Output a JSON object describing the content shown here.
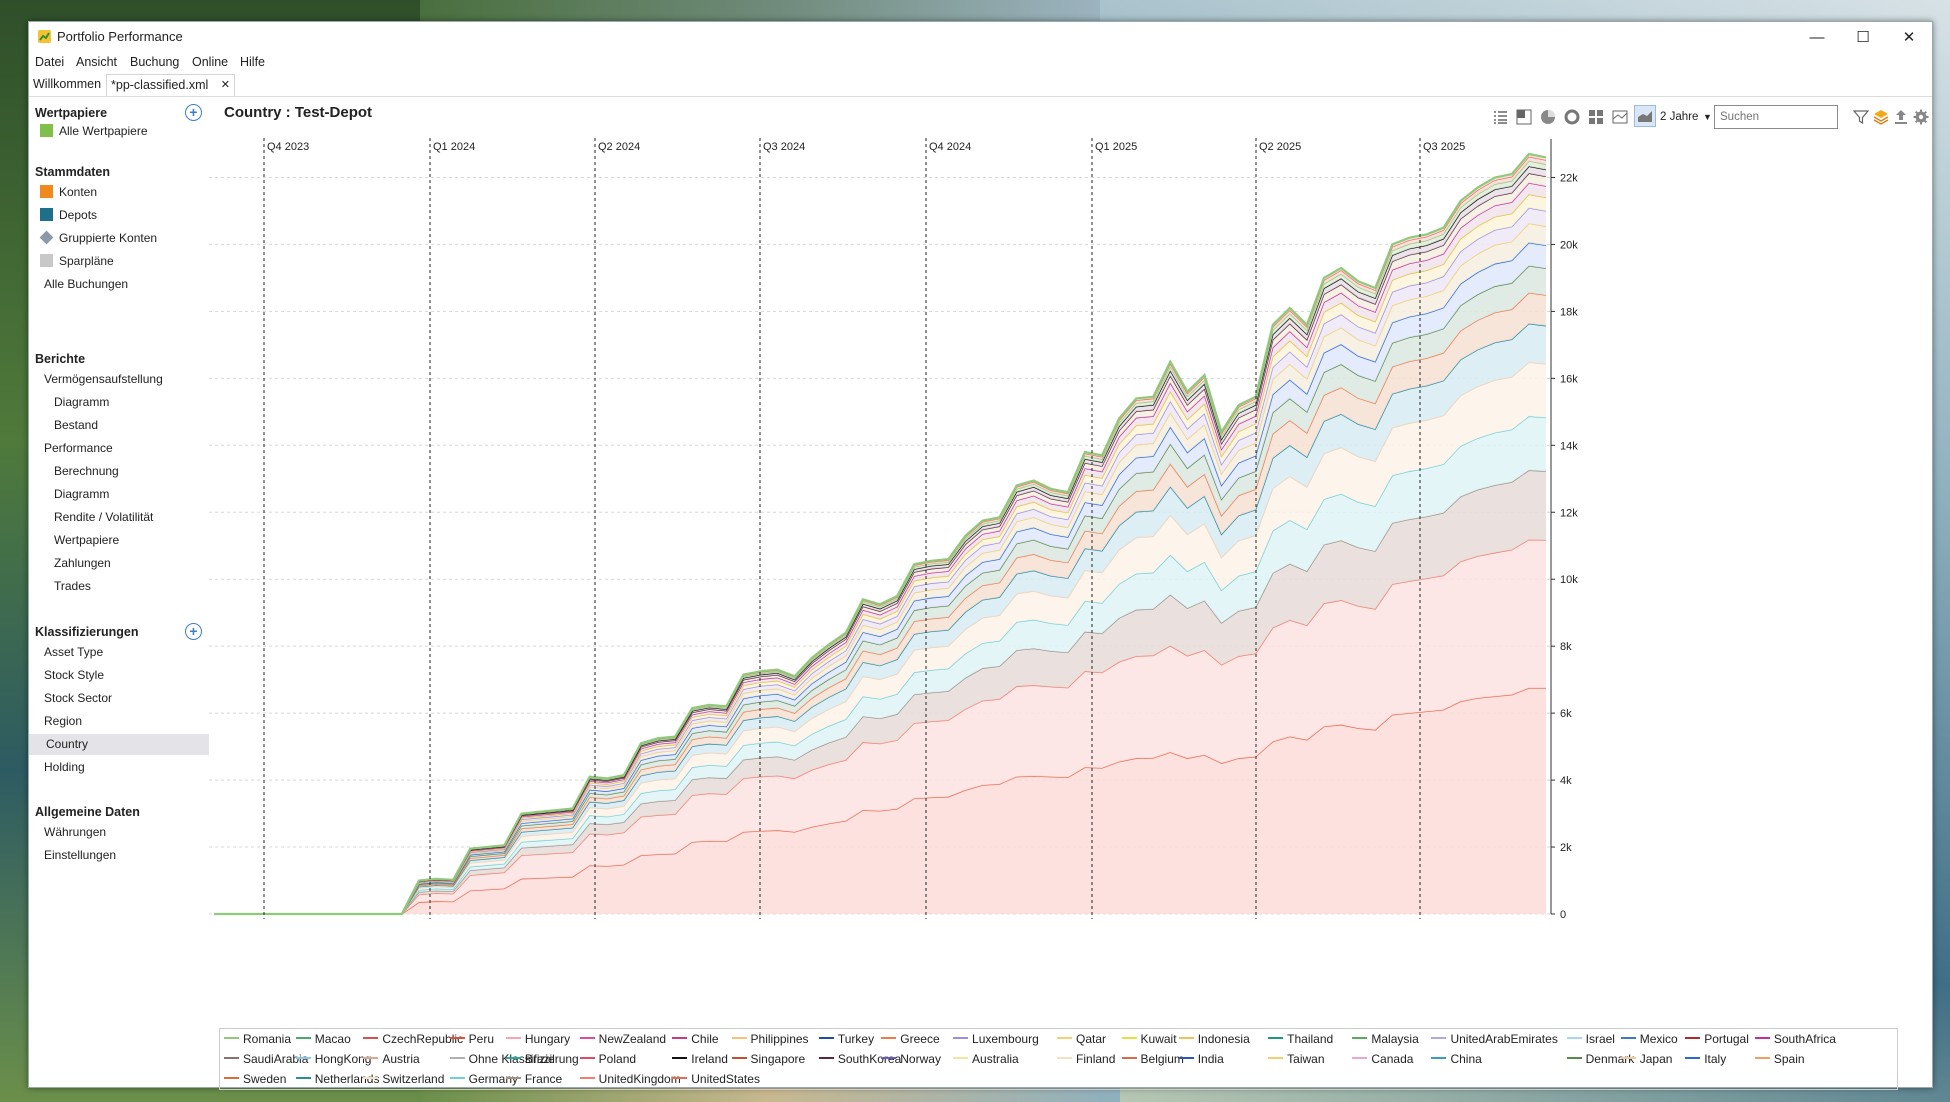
{
  "window": {
    "title": "Portfolio Performance",
    "minimize": "—",
    "maximize": "☐",
    "close": "✕"
  },
  "menu": [
    "Datei",
    "Ansicht",
    "Buchung",
    "Online",
    "Hilfe"
  ],
  "tabs": [
    {
      "label": "Willkommen"
    },
    {
      "label": "*pp-classified.xml",
      "close": "✕"
    }
  ],
  "sidebar": {
    "wertpapiere": {
      "title": "Wertpapiere",
      "items": [
        "Alle Wertpapiere"
      ]
    },
    "stammdaten": {
      "title": "Stammdaten",
      "items": [
        "Konten",
        "Depots",
        "Gruppierte Konten",
        "Sparpläne",
        "Alle Buchungen"
      ]
    },
    "berichte": {
      "title": "Berichte",
      "items": [
        "Vermögensaufstellung",
        "Diagramm",
        "Bestand",
        "Performance",
        "Berechnung",
        "Diagramm",
        "Rendite / Volatilität",
        "Wertpapiere",
        "Zahlungen",
        "Trades"
      ]
    },
    "klassifizierungen": {
      "title": "Klassifizierungen",
      "items": [
        "Asset Type",
        "Stock Style",
        "Stock Sector",
        "Region",
        "Country",
        "Holding"
      ],
      "selected": "Country"
    },
    "allgemein": {
      "title": "Allgemeine Daten",
      "items": [
        "Währungen",
        "Einstellungen"
      ]
    }
  },
  "main": {
    "title": "Country : Test-Depot",
    "period": "2 Jahre",
    "search_placeholder": "Suchen",
    "toolbar_icons": [
      "list-icon",
      "treemap-icon",
      "pie-icon",
      "donut-icon",
      "grid-icon",
      "stacked-line-icon",
      "stacked-area-icon",
      "filter-icon",
      "layers-icon",
      "export-icon",
      "settings-icon"
    ]
  },
  "chart_data": {
    "type": "area",
    "stacked": true,
    "quarter_markers": [
      "Q4 2023",
      "Q1 2024",
      "Q2 2024",
      "Q3 2024",
      "Q4 2024",
      "Q1 2025",
      "Q2 2025",
      "Q3 2025"
    ],
    "y_ticks": [
      "0",
      "2k",
      "4k",
      "6k",
      "8k",
      "10k",
      "12k",
      "14k",
      "16k",
      "18k",
      "20k",
      "22k"
    ],
    "ylim": [
      0,
      23000
    ],
    "grid": true,
    "legend_position": "bottom",
    "total_values": [
      0,
      0,
      0,
      0,
      0,
      0,
      0,
      0,
      0,
      0,
      0,
      0,
      1000,
      1050,
      1020,
      1950,
      2000,
      2050,
      3000,
      3050,
      3100,
      3150,
      4100,
      4050,
      4150,
      5100,
      5250,
      5300,
      6150,
      6250,
      6200,
      7150,
      7250,
      7300,
      7100,
      7650,
      8050,
      8400,
      9400,
      9250,
      9500,
      10450,
      10550,
      10600,
      11300,
      11750,
      11850,
      12800,
      12950,
      12700,
      12600,
      13800,
      13700,
      14800,
      15400,
      15450,
      16500,
      15600,
      16100,
      14400,
      15200,
      15450,
      17600,
      18100,
      17600,
      19000,
      19300,
      18900,
      18700,
      20000,
      20200,
      20300,
      20500,
      21300,
      21700,
      22000,
      22100,
      22700,
      22600
    ],
    "bottom_series": {
      "UnitedStates": [
        0,
        0,
        0,
        0,
        0,
        0,
        0,
        0,
        0,
        0,
        0,
        0,
        350,
        380,
        370,
        700,
        730,
        760,
        1050,
        1070,
        1090,
        1110,
        1450,
        1430,
        1470,
        1750,
        1780,
        1800,
        2150,
        2180,
        2170,
        2450,
        2480,
        2500,
        2450,
        2600,
        2700,
        2780,
        3100,
        3080,
        3140,
        3450,
        3480,
        3500,
        3700,
        3850,
        3880,
        4100,
        4120,
        4100,
        4080,
        4380,
        4360,
        4550,
        4650,
        4660,
        4830,
        4650,
        4750,
        4500,
        4650,
        4700,
        5150,
        5300,
        5200,
        5600,
        5650,
        5550,
        5500,
        5950,
        6000,
        6050,
        6100,
        6350,
        6450,
        6500,
        6550,
        6750,
        6750
      ],
      "UnitedKingdom": [
        0,
        0,
        0,
        0,
        0,
        0,
        0,
        0,
        0,
        0,
        0,
        0,
        230,
        240,
        235,
        460,
        470,
        480,
        700,
        710,
        720,
        730,
        950,
        940,
        960,
        1150,
        1170,
        1180,
        1400,
        1420,
        1410,
        1600,
        1620,
        1630,
        1600,
        1700,
        1770,
        1820,
        2030,
        2010,
        2050,
        2250,
        2270,
        2290,
        2420,
        2520,
        2540,
        2700,
        2710,
        2690,
        2680,
        2870,
        2850,
        2980,
        3050,
        3060,
        3180,
        3060,
        3130,
        2940,
        3050,
        3080,
        3400,
        3480,
        3420,
        3680,
        3720,
        3650,
        3610,
        3900,
        3940,
        3970,
        4010,
        4180,
        4240,
        4290,
        4330,
        4430,
        4420
      ]
    },
    "series": [
      "Romania",
      "Macao",
      "CzechRepublic",
      "Peru",
      "Hungary",
      "NewZealand",
      "Chile",
      "Philippines",
      "Turkey",
      "Greece",
      "Luxembourg",
      "Qatar",
      "Kuwait",
      "Indonesia",
      "Thailand",
      "Malaysia",
      "UnitedArabEmirates",
      "Israel",
      "Mexico",
      "Portugal",
      "SouthAfrica",
      "SaudiArabia",
      "HongKong",
      "Austria",
      "Ohne Klassifizierung",
      "Brazil",
      "Poland",
      "Ireland",
      "Singapore",
      "SouthKorea",
      "Norway",
      "Australia",
      "Finland",
      "Belgium",
      "India",
      "Taiwan",
      "Canada",
      "China",
      "Denmark",
      "Japan",
      "Italy",
      "Spain",
      "Sweden",
      "Netherlands",
      "Switzerland",
      "Germany",
      "France",
      "UnitedKingdom",
      "UnitedStates"
    ],
    "series_colors": [
      "#8fca7b",
      "#4aa96e",
      "#d94f4f",
      "#e0503a",
      "#f4a6b5",
      "#d94fa0",
      "#c23a8c",
      "#f5c07a",
      "#1d4f9a",
      "#e87d4f",
      "#9a8fe0",
      "#f5d27a",
      "#e5e040",
      "#f0c060",
      "#1d9a7a",
      "#5aaa5a",
      "#b0a8e0",
      "#a8d8e8",
      "#3a7ac0",
      "#b02a2a",
      "#c030a0",
      "#8a7070",
      "#8ac8e8",
      "#d8a890",
      "#b0b0b0",
      "#2aa89a",
      "#e04a6a",
      "#111111",
      "#c05030",
      "#5a2a3a",
      "#6a5ac0",
      "#f0e8a0",
      "#f5e0c0",
      "#d86a4a",
      "#2a5ab0",
      "#f0d070",
      "#f0a8c8",
      "#3a9ac8",
      "#5a8a4a",
      "#f5c8a0",
      "#2a6ad0",
      "#f0a060",
      "#e06a3a",
      "#2a8aa0",
      "#f5e0c8",
      "#70d0d8",
      "#a09088",
      "#f08070",
      "#e86a50"
    ]
  }
}
